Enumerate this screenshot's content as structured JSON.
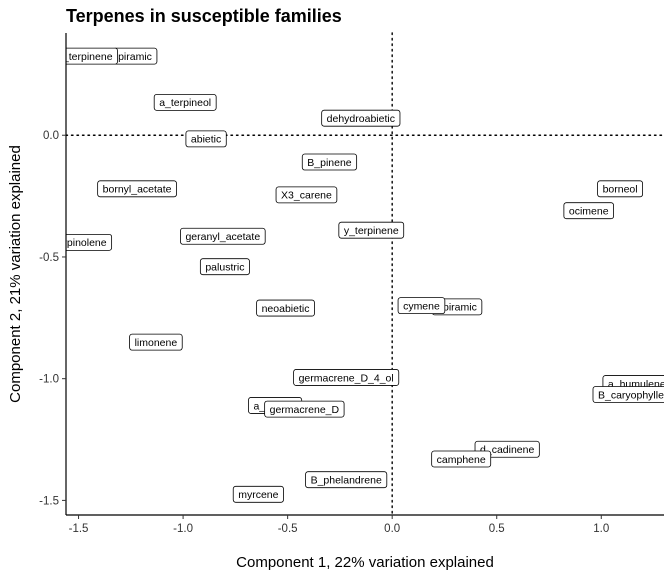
{
  "chart_data": {
    "type": "scatter",
    "title": "Terpenes in susceptible families",
    "xlabel": "Component 1, 22% variation explained",
    "ylabel": "Component 2, 21% variation explained",
    "xlim": [
      -1.56,
      1.3
    ],
    "ylim": [
      -1.56,
      0.42
    ],
    "xticks": [
      -1.5,
      -1.0,
      -0.5,
      0.0,
      0.5,
      1.0
    ],
    "xtick_labels": [
      "-1.5",
      "-1.0",
      "-0.5",
      "0.0",
      "0.5",
      "1.0"
    ],
    "yticks": [
      -1.5,
      -1.0,
      -0.5,
      0.0
    ],
    "ytick_labels": [
      "-1.5",
      "-1.0",
      "-0.5",
      "0.0"
    ],
    "reference_lines": {
      "x": 0,
      "y": 0,
      "style": "dotted"
    },
    "grid": false,
    "points": [
      {
        "label": "a_terpinene",
        "x": -1.47,
        "y": 0.325
      },
      {
        "label": "a_terpineol",
        "x": -0.99,
        "y": 0.135
      },
      {
        "label": "dehydroabietic",
        "x": -0.15,
        "y": 0.07
      },
      {
        "label": "abietic",
        "x": -0.89,
        "y": -0.015
      },
      {
        "label": "B_pinene",
        "x": -0.3,
        "y": -0.11
      },
      {
        "label": "borneol",
        "x": 1.09,
        "y": -0.22
      },
      {
        "label": "bornyl_acetate",
        "x": -1.22,
        "y": -0.22
      },
      {
        "label": "X3_carene",
        "x": -0.41,
        "y": -0.245
      },
      {
        "label": "ocimene",
        "x": 0.94,
        "y": -0.31
      },
      {
        "label": "y_terpinene",
        "x": -0.1,
        "y": -0.39
      },
      {
        "label": "geranyl_acetate",
        "x": -0.81,
        "y": -0.415
      },
      {
        "label": "terpinolene",
        "x": -1.49,
        "y": -0.44
      },
      {
        "label": "palustric",
        "x": -0.8,
        "y": -0.54
      },
      {
        "label": "neoabietic",
        "x": -0.51,
        "y": -0.71
      },
      {
        "label": "cymene",
        "x": 0.14,
        "y": -0.7
      },
      {
        "label": "limonene",
        "x": -1.13,
        "y": -0.85
      },
      {
        "label": "germacrene_D_4_ol",
        "x": -0.22,
        "y": -0.995
      },
      {
        "label": "a_humulene",
        "x": 1.17,
        "y": -1.02
      },
      {
        "label": "B_caryophyllene",
        "x": 1.17,
        "y": -1.065
      },
      {
        "label": "a_pinene",
        "x": -0.56,
        "y": -1.11
      },
      {
        "label": "germacrene_D",
        "x": -0.42,
        "y": -1.125
      },
      {
        "label": "d_cadinene",
        "x": 0.55,
        "y": -1.29
      },
      {
        "label": "camphene",
        "x": 0.33,
        "y": -1.33
      },
      {
        "label": "B_phelandrene",
        "x": -0.22,
        "y": -1.415
      },
      {
        "label": "myrcene",
        "x": -0.64,
        "y": -1.475
      }
    ],
    "partially_visible_labels": [
      {
        "visible_text": "piramic",
        "x": -1.23,
        "y": 0.325
      },
      {
        "visible_text": "opiramic",
        "x": 0.31,
        "y": -0.705
      }
    ]
  }
}
